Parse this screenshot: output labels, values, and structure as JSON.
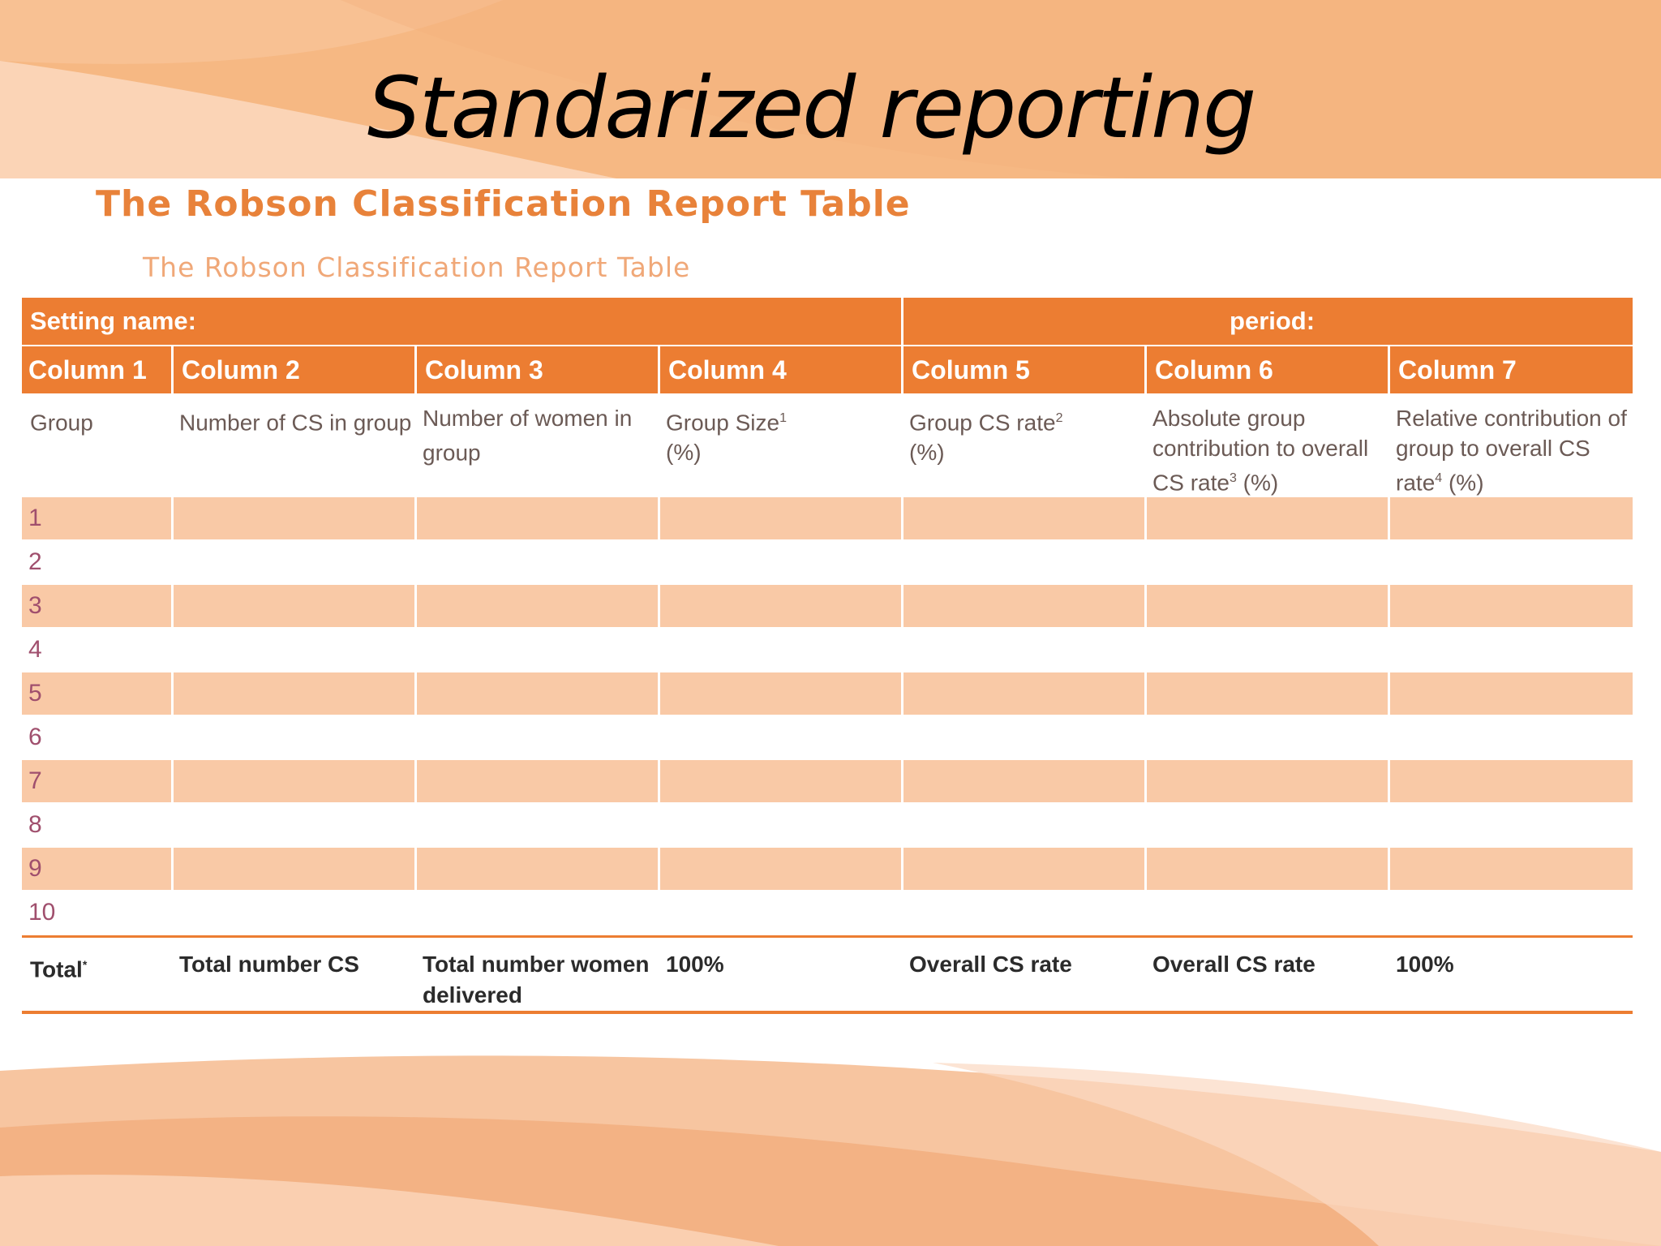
{
  "slide": {
    "title": "Standarized reporting"
  },
  "document": {
    "title": "The Robson Classification Report Table",
    "subtitle": "The Robson Classification Report Table"
  },
  "table": {
    "setting_label": "Setting name:",
    "period_label": "period:",
    "columns": [
      "Column 1",
      "Column 2",
      "Column 3",
      "Column 4",
      "Column 5",
      "Column 6",
      "Column 7"
    ],
    "descriptions": [
      {
        "text": "Group",
        "sup": "",
        "tail": ""
      },
      {
        "text": "Number of CS in group",
        "sup": "",
        "tail": ""
      },
      {
        "text": "Number of women in group",
        "sup": "",
        "tail": ""
      },
      {
        "text": "Group Size",
        "sup": "1",
        "tail": " (%)"
      },
      {
        "text": "Group CS rate",
        "sup": "2",
        "tail": " (%)"
      },
      {
        "text": "Absolute group contribution to overall CS rate",
        "sup": "3",
        "tail": " (%)"
      },
      {
        "text": "Relative contribution of group to overall CS rate",
        "sup": "4",
        "tail": " (%)"
      }
    ],
    "groups": [
      "1",
      "2",
      "3",
      "4",
      "5",
      "6",
      "7",
      "8",
      "9",
      "10"
    ],
    "totals": [
      {
        "text": "Total",
        "sup": "*"
      },
      {
        "text": "Total number CS",
        "sup": ""
      },
      {
        "text": "Total number women delivered",
        "sup": ""
      },
      {
        "text": "100%",
        "sup": ""
      },
      {
        "text": "Overall CS rate",
        "sup": ""
      },
      {
        "text": "Overall CS rate",
        "sup": ""
      },
      {
        "text": "100%",
        "sup": ""
      }
    ]
  },
  "colors": {
    "header_orange": "#ec7d32",
    "row_stripe": "#f9c9a6",
    "banner": "#f5b884",
    "title_orange": "#e8823a"
  }
}
